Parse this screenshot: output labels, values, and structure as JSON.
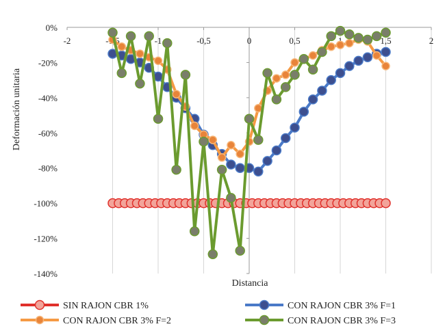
{
  "chart_data": {
    "type": "line",
    "xlabel": "Distancia",
    "ylabel": "Deformación unitaria",
    "xlim": [
      -2,
      2
    ],
    "ylim": [
      -140,
      0
    ],
    "x_ticks": [
      -2,
      -1.5,
      -1,
      -0.5,
      0,
      0.5,
      1,
      1.5,
      2
    ],
    "x_tick_labels": [
      "-2",
      "-1,5",
      "-1",
      "-0,5",
      "0",
      "0,5",
      "1",
      "1,5",
      "2"
    ],
    "y_ticks": [
      0,
      -20,
      -40,
      -60,
      -80,
      -100,
      -120,
      -140
    ],
    "y_tick_labels": [
      "0%",
      "-20%",
      "-40%",
      "-60%",
      "-80%",
      "-100%",
      "-120%",
      "-140%"
    ],
    "grid": {
      "vertical": true,
      "horizontal": false
    },
    "legend": {
      "position": "bottom",
      "columns": 2
    },
    "series": [
      {
        "name": "SIN RAJON CBR  1%",
        "color": "#e0302b",
        "marker_fill": "#f2a49a",
        "x": [
          -1.5,
          -1.433,
          -1.367,
          -1.3,
          -1.233,
          -1.167,
          -1.1,
          -1.033,
          -0.967,
          -0.9,
          -0.833,
          -0.767,
          -0.7,
          -0.633,
          -0.567,
          -0.5,
          -0.433,
          -0.367,
          -0.3,
          -0.233,
          -0.167,
          -0.1,
          -0.033,
          0.033,
          0.1,
          0.167,
          0.233,
          0.3,
          0.367,
          0.433,
          0.5,
          0.567,
          0.633,
          0.7,
          0.767,
          0.833,
          0.9,
          0.967,
          1.033,
          1.1,
          1.167,
          1.233,
          1.3,
          1.367,
          1.433,
          1.5
        ],
        "y": [
          -100,
          -100,
          -100,
          -100,
          -100,
          -100,
          -100,
          -100,
          -100,
          -100,
          -100,
          -100,
          -100,
          -100,
          -100,
          -100,
          -100,
          -100,
          -100,
          -100,
          -100,
          -100,
          -100,
          -100,
          -100,
          -100,
          -100,
          -100,
          -100,
          -100,
          -100,
          -100,
          -100,
          -100,
          -100,
          -100,
          -100,
          -100,
          -100,
          -100,
          -100,
          -100,
          -100,
          -100,
          -100,
          -100
        ]
      },
      {
        "name": "CON RAJON CBR 3% F=1",
        "color": "#4a7ac8",
        "marker_fill": "#3d4f8f",
        "x": [
          -1.5,
          -1.4,
          -1.3,
          -1.2,
          -1.1,
          -1.0,
          -0.9,
          -0.8,
          -0.7,
          -0.6,
          -0.5,
          -0.4,
          -0.3,
          -0.2,
          -0.1,
          0.0,
          0.1,
          0.2,
          0.3,
          0.4,
          0.5,
          0.6,
          0.7,
          0.8,
          0.9,
          1.0,
          1.1,
          1.2,
          1.3,
          1.4,
          1.5
        ],
        "y": [
          -15,
          -16,
          -18,
          -20,
          -23,
          -28,
          -34,
          -40,
          -46,
          -52,
          -61,
          -67,
          -72,
          -78,
          -80,
          -80,
          -82,
          -76,
          -70,
          -63,
          -57,
          -48,
          -41,
          -36,
          -30,
          -26,
          -22,
          -19,
          -17,
          -15,
          -14
        ]
      },
      {
        "name": "CON RAJON CBR 3% F=2",
        "color": "#f59a44",
        "marker_fill": "#e8843a",
        "x": [
          -1.5,
          -1.4,
          -1.3,
          -1.2,
          -1.1,
          -1.0,
          -0.9,
          -0.8,
          -0.7,
          -0.6,
          -0.5,
          -0.4,
          -0.3,
          -0.2,
          -0.1,
          0.0,
          0.1,
          0.2,
          0.3,
          0.4,
          0.5,
          0.6,
          0.7,
          0.8,
          0.9,
          1.0,
          1.1,
          1.2,
          1.3,
          1.4,
          1.5
        ],
        "y": [
          -7,
          -11,
          -13,
          -15,
          -17,
          -19,
          -24,
          -38,
          -45,
          -56,
          -61,
          -64,
          -74,
          -67,
          -72,
          -65,
          -46,
          -36,
          -29,
          -27,
          -20,
          -18,
          -16,
          -13,
          -11,
          -10,
          -9,
          -7,
          -8,
          -16,
          -22
        ]
      },
      {
        "name": "CON RAJON CBR 3% F=3",
        "color": "#6b9b2f",
        "marker_fill": "#7a7e6a",
        "x": [
          -1.5,
          -1.4,
          -1.3,
          -1.2,
          -1.1,
          -1.0,
          -0.9,
          -0.8,
          -0.7,
          -0.6,
          -0.5,
          -0.4,
          -0.3,
          -0.2,
          -0.1,
          0.0,
          0.1,
          0.2,
          0.3,
          0.4,
          0.5,
          0.6,
          0.7,
          0.8,
          0.9,
          1.0,
          1.1,
          1.2,
          1.3,
          1.4,
          1.5
        ],
        "y": [
          -3,
          -26,
          -5,
          -32,
          -5,
          -52,
          -9,
          -81,
          -27,
          -116,
          -65,
          -129,
          -81,
          -97,
          -127,
          -52,
          -64,
          -26,
          -41,
          -34,
          -27,
          -18,
          -24,
          -14,
          -5,
          -2,
          -4,
          -6,
          -7,
          -5,
          -3
        ]
      }
    ]
  }
}
